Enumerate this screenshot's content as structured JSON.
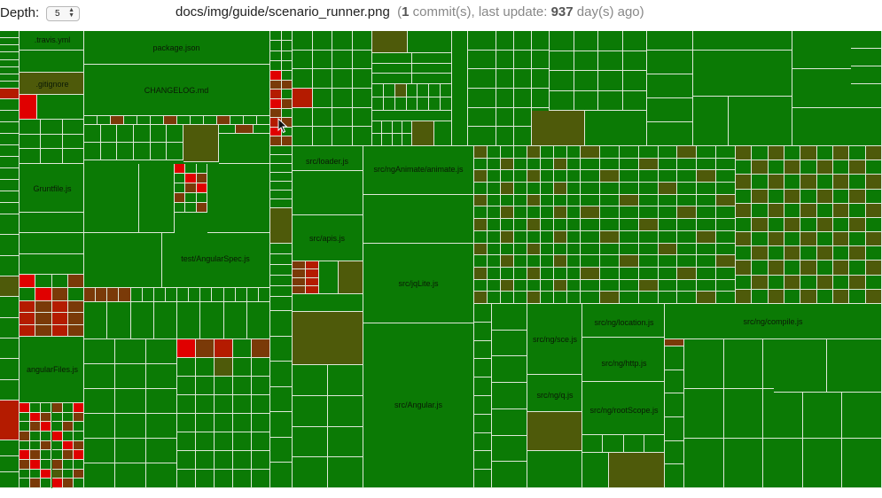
{
  "header": {
    "depth_label": "Depth:",
    "depth_value": "5",
    "path": "docs/img/guide/scenario_runner.png",
    "commits_open": "(",
    "commit_count": "1",
    "commits_label": " commit(s), last update: ",
    "days": "937",
    "days_label": " day(s) ago)"
  },
  "treemap": {
    "files": [
      ".travis.yml",
      ".gitignore",
      "Gruntfile.js",
      "angularFiles.js",
      "package.json",
      "CHANGELOG.md",
      "test/AngularSpec.js",
      "src/loader.js",
      "src/apis.js",
      "src/ngAnimate/animate.js",
      "src/jqLite.js",
      "src/Angular.js",
      "src/ng/sce.js",
      "src/ng/q.js",
      "src/ng/location.js",
      "src/ng/http.js",
      "src/ng/rootScope.js",
      "src/ng/compile.js"
    ],
    "colors": {
      "green": "#0b7a05",
      "olive": "#4e5a0a",
      "brown": "#7a3a08",
      "red": "#e00000",
      "dark_red": "#b41b00"
    }
  }
}
